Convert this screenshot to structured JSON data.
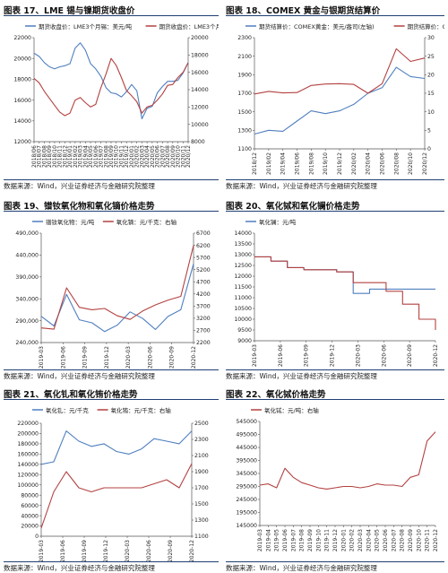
{
  "page": {
    "source_text": "数据来源：Wind，兴业证券经济与金融研究院整理"
  },
  "colors": {
    "blue": "#4f7fbf",
    "red": "#b34140",
    "rule": "#1f3f74",
    "axis": "#555555"
  },
  "chart_data": [
    {
      "type": "line",
      "title": "图表 17、LME 锡与镍期货收盘价",
      "legend": [
        "期货收盘价：LME3个月锡：美元/吨",
        "期货收盘价：LME3个月镍：美元/吨：右轴"
      ],
      "legend_position": "top",
      "x_ticks": [
        "2018/06",
        "2018/07",
        "2018/08",
        "2018/09",
        "2018/10",
        "2018/11",
        "2018/12",
        "2019/01",
        "2019/02",
        "2019/03",
        "2019/04",
        "2019/05",
        "2019/06",
        "2019/07",
        "2019/08",
        "2019/09",
        "2019/10",
        "2019/11",
        "2019/12",
        "2020/01",
        "2020/02",
        "2020/03",
        "2020/04",
        "2020/05",
        "2020/06",
        "2020/07",
        "2020/08",
        "2020/09",
        "2020/10",
        "2020/11",
        "2020/12"
      ],
      "ylim_left": [
        12000,
        22000
      ],
      "yticks_left": [
        "12000",
        "14000",
        "16000",
        "18000",
        "20000",
        "22000"
      ],
      "ylim_right": [
        8000,
        20000
      ],
      "yticks_right": [
        "8000",
        "10000",
        "12000",
        "14000",
        "16000",
        "18000",
        "20000"
      ],
      "series": [
        {
          "name": "期货收盘价：LME3个月锡：美元/吨",
          "axis": "left",
          "color": "#4f7fbf",
          "values": [
            20500,
            20200,
            19600,
            19200,
            19000,
            19200,
            19300,
            19500,
            21000,
            21500,
            20800,
            19500,
            19000,
            18300,
            17200,
            16700,
            16600,
            16300,
            16800,
            17500,
            16900,
            14200,
            15200,
            15400,
            16700,
            17300,
            17800,
            17800,
            17900,
            18600,
            19600
          ]
        },
        {
          "name": "期货收盘价：LME3个月镍：美元/吨：右轴",
          "axis": "right",
          "color": "#b34140",
          "values": [
            15300,
            14800,
            13800,
            13000,
            12200,
            11400,
            11000,
            11300,
            12800,
            13100,
            12500,
            12000,
            12300,
            14200,
            15800,
            17600,
            16800,
            15400,
            13900,
            13300,
            12600,
            11300,
            12000,
            12200,
            12800,
            13500,
            14500,
            14600,
            15400,
            16000,
            17100
          ]
        }
      ]
    },
    {
      "type": "line",
      "title": "图表 18、COMEX 黄金与银期货结算价",
      "legend": [
        "期货结算价：COMEX黄金：美元/盎司(左轴)",
        "期货结算价：COMEX银：美元/盎司"
      ],
      "legend_position": "top",
      "x_ticks": [
        "2018/12",
        "2019/02",
        "2019/04",
        "2019/06",
        "2019/08",
        "2019/10",
        "2019/12",
        "2020/02",
        "2020/04",
        "2020/06",
        "2020/08",
        "2020/10",
        "2020/12"
      ],
      "ylim_left": [
        1100,
        2300
      ],
      "yticks_left": [
        "1100",
        "1300",
        "1500",
        "1700",
        "1900",
        "2100",
        "2300"
      ],
      "ylim_right": [
        0,
        30
      ],
      "yticks_right": [
        "0",
        "5",
        "10",
        "15",
        "20",
        "25",
        "30"
      ],
      "series": [
        {
          "name": "期货结算价：COMEX黄金：美元/盎司(左轴)",
          "axis": "left",
          "color": "#4f7fbf",
          "values": [
            1260,
            1300,
            1290,
            1400,
            1510,
            1480,
            1510,
            1580,
            1700,
            1760,
            1980,
            1880,
            1860
          ]
        },
        {
          "name": "期货结算价：COMEX银：美元/盎司",
          "axis": "right",
          "color": "#b34140",
          "values": [
            14.8,
            15.5,
            15.1,
            15.2,
            17.1,
            17.5,
            17.6,
            17.4,
            15.0,
            17.6,
            27.0,
            23.6,
            24.5
          ]
        }
      ]
    },
    {
      "type": "line",
      "title": "图表 19、镨钕氧化物和氧化镝价格走势",
      "legend": [
        "镨钕氧化物：元/吨",
        "氧化镝：元/千克：右轴"
      ],
      "legend_position": "top",
      "x_ticks": [
        "2019-03",
        "2019-06",
        "2019-09",
        "2019-12",
        "2020-03",
        "2020-06",
        "2020-09",
        "2020-12"
      ],
      "ylim_left": [
        240000,
        490000
      ],
      "yticks_left": [
        "240,000",
        "290,000",
        "340,000",
        "390,000",
        "440,000",
        "490,000"
      ],
      "ylim_right": [
        2200,
        6700
      ],
      "yticks_right": [
        "2200",
        "2700",
        "3200",
        "3700",
        "4200",
        "4700",
        "5200",
        "5700",
        "6200",
        "6700"
      ],
      "series": [
        {
          "name": "镨钕氧化物：元/吨",
          "axis": "left",
          "color": "#4f7fbf",
          "values": [
            300000,
            278000,
            350000,
            292000,
            285000,
            265000,
            280000,
            310000,
            295000,
            270000,
            300000,
            315000,
            420000
          ]
        },
        {
          "name": "氧化镝：元/千克：右轴",
          "axis": "right",
          "color": "#b34140",
          "values": [
            2800,
            2750,
            4450,
            3650,
            3550,
            3600,
            3300,
            3150,
            3500,
            3750,
            3950,
            4100,
            6200
          ]
        }
      ]
    },
    {
      "type": "line",
      "title": "图表 20、氧化铽和氧化镧价格走势",
      "legend": [
        "氧化镧：元/吨"
      ],
      "legend_position": "top",
      "x_ticks": [
        "2019-03",
        "2019-06",
        "2019-09",
        "2019-12",
        "2020-03",
        "2020-06",
        "2020-09",
        "2020-12"
      ],
      "ylim_left": [
        9000,
        14000
      ],
      "yticks_left": [
        "9000",
        "9500",
        "10000",
        "10500",
        "11000",
        "11500",
        "12000",
        "12500",
        "13000",
        "13500",
        "14000"
      ],
      "series": [
        {
          "name": "氧化镧：元/吨",
          "axis": "left",
          "color": "#4f7fbf",
          "values": [
            12900,
            12700,
            12400,
            12300,
            12300,
            12200,
            11200,
            11400,
            11400,
            11400,
            11400,
            11400
          ]
        },
        {
          "name": "",
          "axis": "left",
          "color": "#b34140",
          "values": [
            12900,
            12700,
            12400,
            12300,
            12300,
            12200,
            11700,
            11700,
            11300,
            10700,
            10000,
            9500
          ]
        }
      ]
    },
    {
      "type": "line",
      "title": "图表 21、氧化钆和氧化铕价格走势",
      "legend": [
        "氧化钆：元/千克",
        "氧化铕：元/千克：右轴"
      ],
      "legend_position": "top",
      "x_ticks": [
        "2019-03",
        "2019-06",
        "2019-09",
        "2019-12",
        "2020-03",
        "2020-06",
        "2020-09",
        "2020-12"
      ],
      "ylim_left": [
        0,
        220000
      ],
      "yticks_left": [
        "0",
        "20000",
        "40000",
        "60000",
        "80000",
        "100000",
        "120000",
        "140000",
        "160000",
        "180000",
        "200000",
        "220000"
      ],
      "ylim_right": [
        1100,
        2500
      ],
      "yticks_right": [
        "1100",
        "1300",
        "1500",
        "1700",
        "1900",
        "2100",
        "2300",
        "2500"
      ],
      "series": [
        {
          "name": "氧化钆：元/千克",
          "axis": "left",
          "color": "#4f7fbf",
          "values": [
            140000,
            145000,
            205000,
            185000,
            175000,
            180000,
            165000,
            160000,
            170000,
            190000,
            185000,
            180000,
            205000
          ]
        },
        {
          "name": "氧化铕：元/千克：右轴",
          "axis": "right",
          "color": "#b34140",
          "values": [
            1200,
            1650,
            1900,
            1700,
            1650,
            1700,
            1700,
            1700,
            1700,
            1750,
            1800,
            1700,
            2000
          ]
        }
      ]
    },
    {
      "type": "line",
      "title": "图表 22、氧化铽价格走势",
      "legend": [
        "氧化铽：元/吨：右轴"
      ],
      "legend_position": "top",
      "x_ticks": [
        "2019-03",
        "2019-04",
        "2019-05",
        "2019-06",
        "2019-07",
        "2019-08",
        "2019-09",
        "2019-10",
        "2019-11",
        "2019-12",
        "2020-01",
        "2020-02",
        "2020-03",
        "2020-04",
        "2020-05",
        "2020-06",
        "2020-07",
        "2020-08",
        "2020-09",
        "2020-10",
        "2020-11",
        "2020-12"
      ],
      "ylim_left": [
        145000,
        545000
      ],
      "yticks_left": [
        "145000",
        "195000",
        "245000",
        "295000",
        "345000",
        "395000",
        "445000",
        "495000",
        "545000"
      ],
      "series": [
        {
          "name": "氧化铽：元/吨：右轴",
          "axis": "left",
          "color": "#b34140",
          "values": [
            300000,
            305000,
            290000,
            365000,
            330000,
            310000,
            300000,
            290000,
            285000,
            290000,
            295000,
            295000,
            290000,
            295000,
            305000,
            300000,
            300000,
            295000,
            330000,
            340000,
            470000,
            505000
          ]
        }
      ]
    }
  ]
}
